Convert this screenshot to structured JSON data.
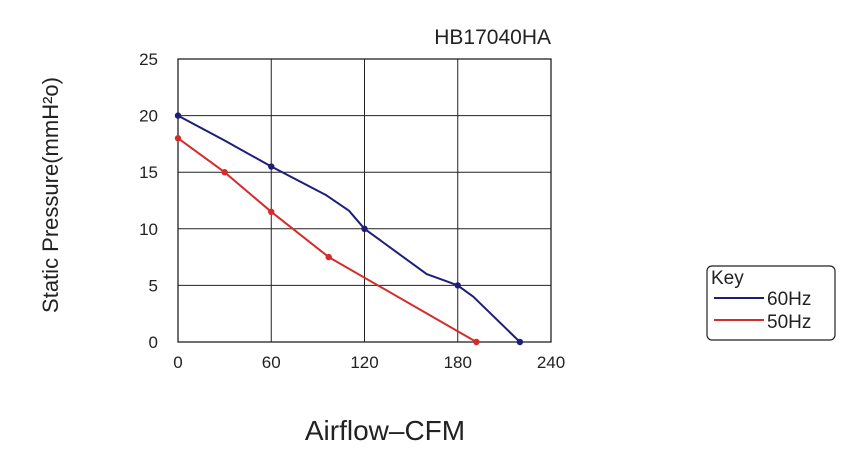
{
  "chart_data": {
    "type": "line",
    "title": "HB17040HA",
    "xlabel": "Airflow–CFM",
    "ylabel": "Static Pressure(mmH²o)",
    "xlim": [
      0,
      240
    ],
    "ylim": [
      0,
      25
    ],
    "xticks": [
      0,
      60,
      120,
      180,
      240
    ],
    "yticks": [
      0,
      5,
      10,
      15,
      20,
      25
    ],
    "grid": true,
    "legend": {
      "title": "Key",
      "placement": "right"
    },
    "series": [
      {
        "name": "60Hz",
        "color": "#1e1e7a",
        "marker_points": [
          [
            0,
            20
          ],
          [
            60,
            15.5
          ],
          [
            120,
            10
          ],
          [
            180,
            5
          ],
          [
            220,
            0
          ]
        ],
        "curve": [
          [
            0,
            20
          ],
          [
            30,
            17.8
          ],
          [
            60,
            15.5
          ],
          [
            95,
            13
          ],
          [
            110,
            11.6
          ],
          [
            120,
            10
          ],
          [
            140,
            8
          ],
          [
            160,
            6
          ],
          [
            172,
            5.4
          ],
          [
            180,
            5
          ],
          [
            190,
            4
          ],
          [
            220,
            0
          ]
        ]
      },
      {
        "name": "50Hz",
        "color": "#d62b2b",
        "marker_points": [
          [
            0,
            18
          ],
          [
            30,
            15
          ],
          [
            60,
            11.5
          ],
          [
            97,
            7.5
          ],
          [
            192,
            0
          ]
        ],
        "curve": [
          [
            0,
            18
          ],
          [
            30,
            15
          ],
          [
            60,
            11.5
          ],
          [
            97,
            7.5
          ],
          [
            192,
            0
          ]
        ]
      }
    ]
  }
}
